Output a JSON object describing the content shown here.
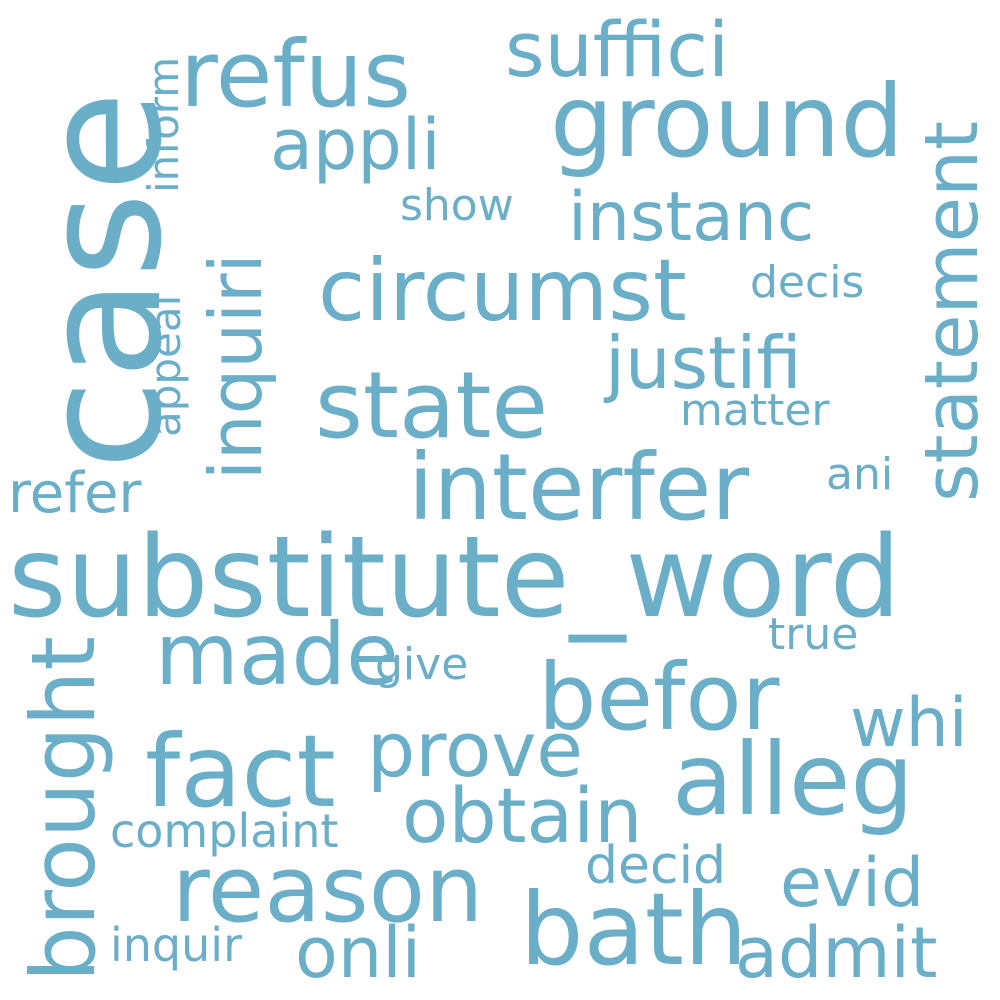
{
  "colors": {
    "word": "#6aaec8",
    "background": "#ffffff"
  },
  "words": {
    "case": "case",
    "refus": "refus",
    "suffici": "suffici",
    "ground": "ground",
    "statement": "statement",
    "inform": "inform",
    "appli": "appli",
    "inquiri": "inquiri",
    "show": "show",
    "instanc": "instanc",
    "circumst": "circumst",
    "decis": "decis",
    "appeal": "appeal",
    "justifi": "justifi",
    "state": "state",
    "matter": "matter",
    "refer": "refer",
    "interfer": "interfer",
    "ani": "ani",
    "substitute_word": "substitute_word",
    "brought": "brought",
    "made": "made",
    "true": "true",
    "give": "give",
    "befor": "befor",
    "whi": "whi",
    "fact": "fact",
    "prove": "prove",
    "alleg": "alleg",
    "complaint": "complaint",
    "obtain": "obtain",
    "decid": "decid",
    "reason": "reason",
    "evid": "evid",
    "bath": "bath",
    "inquir": "inquir",
    "onli": "onli",
    "admit": "admit"
  }
}
